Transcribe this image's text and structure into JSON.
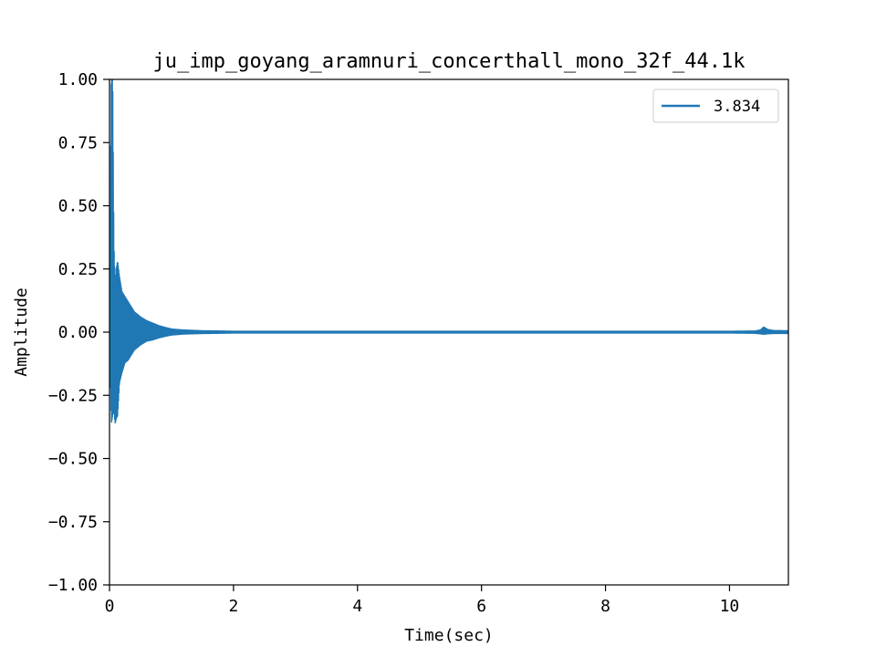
{
  "chart_data": {
    "type": "line",
    "title": "ju_imp_goyang_aramnuri_concerthall_mono_32f_44.1k",
    "xlabel": "Time(sec)",
    "ylabel": "Amplitude",
    "xlim": [
      0,
      10.95
    ],
    "ylim": [
      -1.0,
      1.0
    ],
    "xticks": [
      0,
      2,
      4,
      6,
      8,
      10
    ],
    "xtick_labels": [
      "0",
      "2",
      "4",
      "6",
      "8",
      "10"
    ],
    "yticks": [
      1.0,
      0.75,
      0.5,
      0.25,
      0.0,
      -0.25,
      -0.5,
      -0.75,
      -1.0
    ],
    "ytick_labels": [
      "1.00",
      "0.75",
      "0.50",
      "0.25",
      "0.00",
      "−0.25",
      "−0.50",
      "−0.75",
      "−1.00"
    ],
    "grid": false,
    "legend_position": "top-right",
    "series": [
      {
        "name": "3.834",
        "color": "#1f77b4",
        "envelope": {
          "x": [
            0.0,
            0.03,
            0.05,
            0.07,
            0.09,
            0.11,
            0.13,
            0.16,
            0.2,
            0.25,
            0.3,
            0.35,
            0.4,
            0.5,
            0.6,
            0.7,
            0.8,
            0.9,
            1.0,
            1.2,
            1.5,
            1.8,
            2.0,
            3.0,
            4.0,
            6.0,
            8.0,
            10.0,
            10.4,
            10.5,
            10.55,
            10.62,
            10.7,
            10.95
          ],
          "upper": [
            0.0,
            1.0,
            1.0,
            0.35,
            0.18,
            0.25,
            0.28,
            0.22,
            0.16,
            0.14,
            0.12,
            0.1,
            0.08,
            0.06,
            0.045,
            0.035,
            0.025,
            0.018,
            0.012,
            0.008,
            0.005,
            0.004,
            0.003,
            0.003,
            0.003,
            0.003,
            0.003,
            0.003,
            0.004,
            0.008,
            0.02,
            0.01,
            0.006,
            0.005
          ],
          "lower": [
            0.0,
            -0.36,
            -0.33,
            -0.3,
            -0.36,
            -0.34,
            -0.33,
            -0.2,
            -0.16,
            -0.12,
            -0.11,
            -0.09,
            -0.07,
            -0.05,
            -0.035,
            -0.03,
            -0.022,
            -0.016,
            -0.011,
            -0.007,
            -0.005,
            -0.004,
            -0.003,
            -0.003,
            -0.003,
            -0.003,
            -0.003,
            -0.003,
            -0.004,
            -0.006,
            -0.008,
            -0.006,
            -0.005,
            -0.005
          ]
        }
      }
    ]
  }
}
